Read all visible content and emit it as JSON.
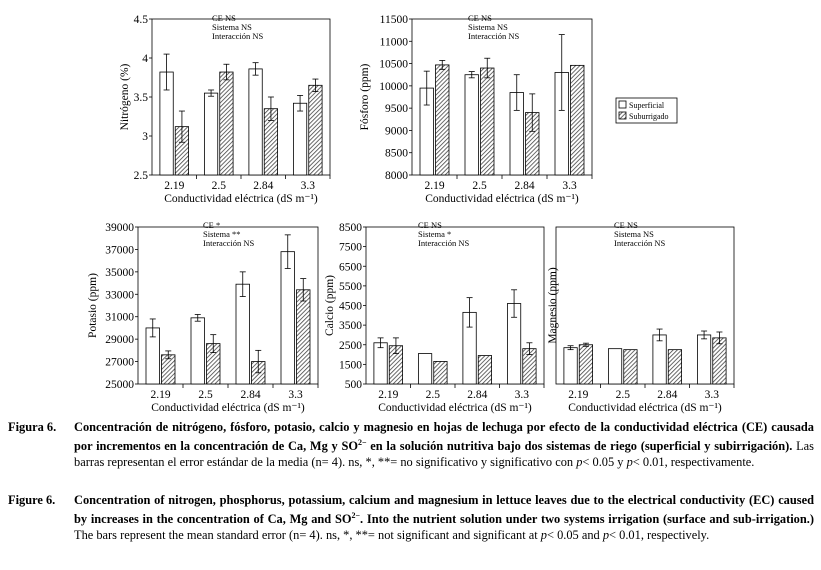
{
  "chart_data": [
    {
      "type": "bar",
      "categories": [
        "2.19",
        "2.5",
        "2.84",
        "3.3"
      ],
      "xlabel": "Conductividad eléctrica (dS m⁻¹)",
      "ylabel": "Nitrógeno (%)",
      "ylim": [
        2.5,
        4.5
      ],
      "yticks": [
        "2.5",
        "3",
        "3.5",
        "4",
        "4.5"
      ],
      "annotations": [
        "CE NS",
        "Sistema NS",
        "Interacción NS"
      ],
      "series": [
        {
          "name": "Superficial",
          "values": [
            3.82,
            3.55,
            3.86,
            3.42
          ],
          "errors": [
            0.23,
            0.04,
            0.08,
            0.1
          ]
        },
        {
          "name": "Suburrigado",
          "values": [
            3.12,
            3.82,
            3.35,
            3.65
          ],
          "errors": [
            0.2,
            0.1,
            0.15,
            0.08
          ]
        }
      ]
    },
    {
      "type": "bar",
      "categories": [
        "2.19",
        "2.5",
        "2.84",
        "3.3"
      ],
      "xlabel": "Conductividad eléctrica (dS m⁻¹)",
      "ylabel": "Fósforo (ppm)",
      "ylim": [
        8000,
        11500
      ],
      "yticks": [
        "8000",
        "8500",
        "9000",
        "9500",
        "10000",
        "10500",
        "11000",
        "11500"
      ],
      "annotations": [
        "CE NS",
        "Sistema NS",
        "Interacción NS"
      ],
      "series": [
        {
          "name": "Superficial",
          "values": [
            9950,
            10250,
            9850,
            10300
          ],
          "errors": [
            380,
            70,
            400,
            850
          ]
        },
        {
          "name": "Suburrigado",
          "values": [
            10470,
            10400,
            9400,
            10460
          ],
          "errors": [
            100,
            220,
            420,
            0
          ]
        }
      ]
    },
    {
      "type": "bar",
      "categories": [
        "2.19",
        "2.5",
        "2.84",
        "3.3"
      ],
      "xlabel": "Conductividad eléctrica (dS m⁻¹)",
      "ylabel": "Potasio (ppm)",
      "ylim": [
        25000,
        39000
      ],
      "yticks": [
        "25000",
        "27000",
        "29000",
        "31000",
        "33000",
        "35000",
        "37000",
        "39000"
      ],
      "annotations": [
        "CE *",
        "Sistema **",
        "Interacción NS"
      ],
      "series": [
        {
          "name": "Superficial",
          "values": [
            30000,
            30900,
            33900,
            36800
          ],
          "errors": [
            800,
            300,
            1100,
            1500
          ]
        },
        {
          "name": "Suburrigado",
          "values": [
            27600,
            28600,
            27000,
            33400
          ],
          "errors": [
            350,
            800,
            1000,
            1000
          ]
        }
      ]
    },
    {
      "type": "bar",
      "categories": [
        "2.19",
        "2.5",
        "2.84",
        "3.3"
      ],
      "xlabel": "Conductividad eléctrica (dS m⁻¹)",
      "ylabel": "Calcio (ppm)",
      "ylim": [
        500,
        8500
      ],
      "yticks": [
        "500",
        "1500",
        "2500",
        "3500",
        "4500",
        "5500",
        "6500",
        "7500",
        "8500"
      ],
      "annotations": [
        "CE NS",
        "Sistema *",
        "Interacción NS"
      ],
      "series": [
        {
          "name": "Superficial",
          "values": [
            2600,
            2050,
            4150,
            4600
          ],
          "errors": [
            250,
            0,
            750,
            700
          ]
        },
        {
          "name": "Suburrigado",
          "values": [
            2450,
            1650,
            1950,
            2300
          ],
          "errors": [
            400,
            0,
            0,
            300
          ]
        }
      ]
    },
    {
      "type": "bar",
      "categories": [
        "2.19",
        "2.5",
        "2.84",
        "3.3"
      ],
      "xlabel": "Conductividad eléctrica (dS m⁻¹)",
      "ylabel": "Magnesio (ppm)",
      "ylim": [
        500,
        8500
      ],
      "yticks": [],
      "annotations": [
        "CE NS",
        "Sistema NS",
        "Interacción NS"
      ],
      "series": [
        {
          "name": "Superficial",
          "values": [
            2350,
            2300,
            3000,
            3000
          ],
          "errors": [
            100,
            0,
            300,
            200
          ]
        },
        {
          "name": "Suburrigado",
          "values": [
            2500,
            2250,
            2250,
            2850
          ],
          "errors": [
            80,
            0,
            0,
            300
          ]
        }
      ]
    }
  ],
  "legend": {
    "items": [
      "Superficial",
      "Suburrigado"
    ]
  },
  "caption": {
    "es": {
      "label": "Figura 6.",
      "bold": "Concentración de nitrógeno, fósforo, potasio, calcio y magnesio en hojas de lechuga por efecto de la conductividad eléctrica (CE) causada por incrementos en la concentración de Ca, Mg y SO",
      "bold_sup": "2−",
      "bold_tail": " en la solución nutritiva bajo dos sistemas de riego (superficial y subirrigación).",
      "text1": " Las barras representan el error estándar de la media (n= 4). ns, *, **= no significativo y significativo con ",
      "p1": "p",
      "text2": "< 0.05 y ",
      "p2": "p",
      "text3": "< 0.01, respectivamente."
    },
    "en": {
      "label": "Figure 6.",
      "bold": "Concentration of nitrogen, phosphorus, potassium, calcium and magnesium in lettuce leaves due to the electrical conductivity (EC) caused by increases in the concentration of Ca, Mg and SO",
      "bold_sup": "2−",
      "bold_tail": ". Into the nutrient solution under two systems irrigation (surface and sub-irrigation.)",
      "text1": " The bars represent the mean standard error (n= 4). ns, *, **= not significant and significant at ",
      "p1": "p",
      "text2": "< 0.05 and ",
      "p2": "p",
      "text3": "< 0.01, respectively."
    }
  }
}
